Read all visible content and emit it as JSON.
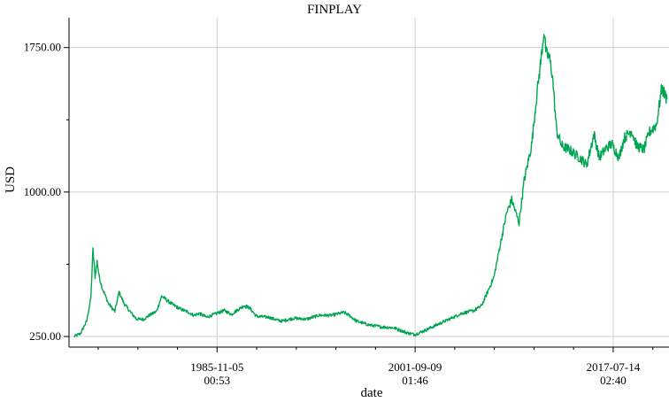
{
  "chart_data": {
    "type": "line",
    "title": "FINPLAY",
    "xlabel": "date",
    "ylabel": "USD",
    "x_tick_labels": [
      [
        "1985-11-05",
        "00:53"
      ],
      [
        "2001-09-09",
        "01:46"
      ],
      [
        "2017-07-14",
        "02:40"
      ]
    ],
    "y_tick_labels": [
      "250.00",
      "1000.00",
      "1750.00"
    ],
    "y_ticks": [
      250,
      1000,
      1750
    ],
    "ylim": [
      195,
      1905
    ],
    "xlim": [
      "1974-01-01",
      "2021-12-31"
    ],
    "grid": true,
    "line_color": "#00a651",
    "series": [
      {
        "x": [
          "1974-06-01",
          "1974-12-01",
          "1975-06-01",
          "1975-10-01",
          "1975-12-01",
          "1976-02-01",
          "1976-04-01",
          "1976-06-01",
          "1976-09-01",
          "1976-12-01",
          "1977-03-01",
          "1977-06-01",
          "1977-09-01",
          "1978-01-01",
          "1978-06-01",
          "1979-01-01",
          "1979-06-01",
          "1980-01-01",
          "1980-06-01",
          "1981-01-01",
          "1981-06-01",
          "1982-01-01",
          "1982-06-01",
          "1983-01-01",
          "1983-06-01",
          "1984-01-01",
          "1984-06-01",
          "1985-01-01",
          "1985-06-01",
          "1986-01-01",
          "1986-06-01",
          "1987-01-01",
          "1987-06-01",
          "1988-01-01",
          "1988-06-01",
          "1989-01-01",
          "1990-01-01",
          "1990-06-01",
          "1991-01-01",
          "1992-01-01",
          "1993-01-01",
          "1994-01-01",
          "1995-01-01",
          "1996-01-01",
          "1996-06-01",
          "1997-01-01",
          "1998-01-01",
          "1999-01-01",
          "2000-01-01",
          "2001-01-01",
          "2001-09-01",
          "2002-06-01",
          "2003-06-01",
          "2004-06-01",
          "2005-06-01",
          "2006-06-01",
          "2007-01-01",
          "2007-06-01",
          "2008-01-01",
          "2008-06-01",
          "2009-01-01",
          "2009-06-01",
          "2010-01-01",
          "2010-06-01",
          "2011-01-01",
          "2011-06-01",
          "2011-10-01",
          "2012-01-01",
          "2012-03-01",
          "2012-06-01",
          "2012-09-01",
          "2013-01-01",
          "2013-06-01",
          "2014-01-01",
          "2014-06-01",
          "2015-01-01",
          "2015-06-01",
          "2016-01-01",
          "2016-06-01",
          "2017-01-01",
          "2017-06-01",
          "2018-01-01",
          "2018-06-01",
          "2019-01-01",
          "2019-06-01",
          "2020-01-01",
          "2020-06-01",
          "2021-01-01",
          "2021-06-01",
          "2021-11-01"
        ],
        "y": [
          250,
          265,
          330,
          450,
          700,
          560,
          640,
          560,
          500,
          460,
          420,
          400,
          380,
          480,
          420,
          370,
          340,
          340,
          360,
          380,
          460,
          430,
          410,
          390,
          380,
          360,
          370,
          350,
          360,
          375,
          385,
          365,
          385,
          410,
          400,
          355,
          350,
          340,
          330,
          345,
          340,
          360,
          360,
          375,
          360,
          330,
          310,
          300,
          295,
          270,
          260,
          280,
          310,
          340,
          370,
          385,
          410,
          470,
          560,
          700,
          890,
          960,
          840,
          1060,
          1240,
          1500,
          1680,
          1840,
          1720,
          1700,
          1610,
          1320,
          1240,
          1220,
          1200,
          1170,
          1140,
          1300,
          1180,
          1230,
          1250,
          1180,
          1280,
          1320,
          1240,
          1220,
          1310,
          1350,
          1540,
          1480
        ]
      }
    ]
  }
}
